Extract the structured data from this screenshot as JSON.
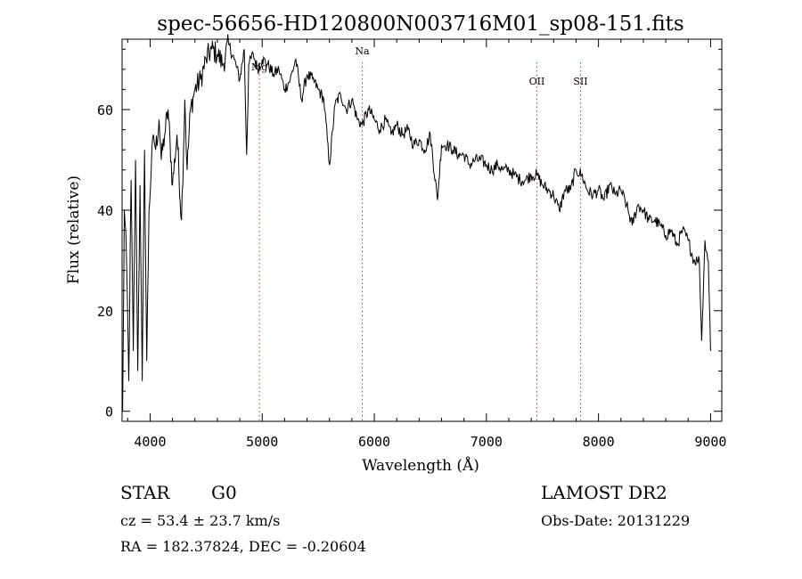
{
  "chart_data": {
    "type": "line",
    "title": "spec-56656-HD120800N003716M01_sp08-151.fits",
    "xlabel": "Wavelength (Å)",
    "ylabel": "Flux (relative)",
    "xlim": [
      3750,
      9100
    ],
    "ylim": [
      -2,
      74
    ],
    "x_ticks": [
      4000,
      5000,
      6000,
      7000,
      8000,
      9000
    ],
    "y_ticks": [
      0,
      20,
      40,
      60
    ],
    "grid": false,
    "line_color": "#000000",
    "marker_color": "#cc3333",
    "lines": [
      {
        "name": "Mg",
        "x": 4975
      },
      {
        "name": "Na",
        "x": 5892
      },
      {
        "name": "OII",
        "x": 7450
      },
      {
        "name": "SII",
        "x": 7840
      }
    ],
    "series": [
      {
        "x": [
          3755,
          3770,
          3790,
          3810,
          3830,
          3850,
          3870,
          3890,
          3910,
          3930,
          3950,
          3970,
          3990,
          4010,
          4030,
          4050,
          4080,
          4100,
          4130,
          4160,
          4200,
          4240,
          4280,
          4310,
          4330,
          4360,
          4400,
          4450,
          4500,
          4550,
          4600,
          4650,
          4700,
          4750,
          4800,
          4840,
          4861,
          4880,
          4920,
          4960,
          5000,
          5050,
          5100,
          5150,
          5200,
          5250,
          5300,
          5350,
          5400,
          5450,
          5500,
          5550,
          5600,
          5650,
          5700,
          5750,
          5800,
          5850,
          5890,
          5950,
          6000,
          6050,
          6100,
          6150,
          6200,
          6250,
          6300,
          6350,
          6400,
          6450,
          6500,
          6563,
          6600,
          6650,
          6700,
          6750,
          6800,
          6850,
          6900,
          6950,
          7000,
          7050,
          7100,
          7150,
          7200,
          7250,
          7300,
          7350,
          7400,
          7450,
          7500,
          7550,
          7600,
          7650,
          7700,
          7750,
          7800,
          7850,
          7900,
          7950,
          8000,
          8050,
          8100,
          8150,
          8200,
          8250,
          8300,
          8350,
          8400,
          8450,
          8500,
          8550,
          8600,
          8650,
          8700,
          8750,
          8800,
          8850,
          8880,
          8900,
          8920,
          8950,
          8980,
          9000
        ],
        "values": [
          0,
          40,
          30,
          6,
          46,
          12,
          50,
          8,
          45,
          6,
          52,
          10,
          40,
          48,
          55,
          52,
          58,
          50,
          55,
          60,
          45,
          55,
          38,
          62,
          48,
          60,
          64,
          66,
          70,
          72,
          71,
          69,
          73,
          70,
          66,
          72,
          51,
          69,
          71,
          68,
          70,
          69,
          67,
          68,
          64,
          66,
          70,
          62,
          67,
          66,
          64,
          62,
          49,
          61,
          63,
          60,
          62,
          58,
          57,
          60,
          58,
          56,
          58,
          55,
          57,
          55,
          56,
          53,
          54,
          52,
          55,
          42,
          53,
          53,
          52,
          51,
          51,
          49,
          50,
          50,
          49,
          48,
          49,
          48,
          48,
          47,
          46,
          46,
          47,
          47,
          45,
          44,
          43,
          40,
          44,
          44,
          48,
          47,
          44,
          43,
          44,
          42,
          45,
          43,
          44,
          41,
          37,
          41,
          40,
          38,
          38,
          37,
          35,
          36,
          33,
          36,
          34,
          30,
          30,
          30,
          14,
          34,
          30,
          12
        ]
      }
    ],
    "footer": {
      "object_class": "STAR",
      "subclass": "G0",
      "survey": "LAMOST DR2",
      "cz": "cz = 53.4 ± 23.7 km/s",
      "obs_date": "Obs-Date: 20131229",
      "radec": "RA = 182.37824, DEC =  -0.20604"
    }
  }
}
